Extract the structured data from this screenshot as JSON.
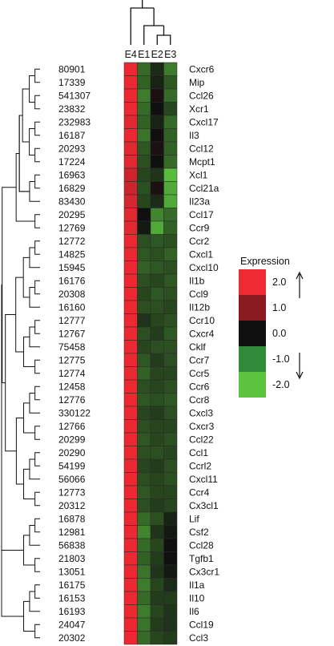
{
  "chart_data": {
    "type": "heatmap",
    "columns": [
      "E4",
      "E1",
      "E2",
      "E3"
    ],
    "rows": [
      {
        "id": "80901",
        "gene": "Cxcr6",
        "values": [
          2.0,
          -1.0,
          -0.3,
          -1.2
        ]
      },
      {
        "id": "17339",
        "gene": "Mip",
        "values": [
          2.0,
          -0.9,
          -0.2,
          -0.8
        ]
      },
      {
        "id": "541307",
        "gene": "Ccl26",
        "values": [
          2.0,
          -1.2,
          0.1,
          -1.0
        ]
      },
      {
        "id": "23832",
        "gene": "Xcr1",
        "values": [
          2.0,
          -1.0,
          0.0,
          -0.6
        ]
      },
      {
        "id": "232983",
        "gene": "Cxcl17",
        "values": [
          1.9,
          -0.9,
          -0.2,
          -1.0
        ]
      },
      {
        "id": "16187",
        "gene": "Il3",
        "values": [
          2.0,
          -1.1,
          0.0,
          -0.9
        ]
      },
      {
        "id": "20293",
        "gene": "Ccl12",
        "values": [
          1.9,
          -0.8,
          0.1,
          -0.9
        ]
      },
      {
        "id": "17224",
        "gene": "Mcpt1",
        "values": [
          1.9,
          -0.7,
          0.0,
          -1.0
        ]
      },
      {
        "id": "16963",
        "gene": "Xcl1",
        "values": [
          1.7,
          -0.6,
          -0.4,
          -1.9
        ]
      },
      {
        "id": "16829",
        "gene": "Ccl21a",
        "values": [
          1.7,
          -0.7,
          0.1,
          -1.7
        ]
      },
      {
        "id": "83430",
        "gene": "Il23a",
        "values": [
          1.8,
          -0.6,
          -0.3,
          -1.7
        ]
      },
      {
        "id": "20295",
        "gene": "Ccl17",
        "values": [
          1.9,
          0.0,
          -1.3,
          -1.0
        ]
      },
      {
        "id": "12769",
        "gene": "Ccr9",
        "values": [
          1.9,
          -0.1,
          -1.7,
          -0.9
        ]
      },
      {
        "id": "12772",
        "gene": "Ccr2",
        "values": [
          2.0,
          -0.7,
          -0.8,
          -0.7
        ]
      },
      {
        "id": "14825",
        "gene": "Cxcl1",
        "values": [
          2.0,
          -0.8,
          -0.7,
          -0.9
        ]
      },
      {
        "id": "15945",
        "gene": "Cxcl10",
        "values": [
          2.0,
          -0.9,
          -0.8,
          -0.7
        ]
      },
      {
        "id": "16176",
        "gene": "Il1b",
        "values": [
          2.0,
          -0.7,
          -0.6,
          -0.8
        ]
      },
      {
        "id": "20308",
        "gene": "Ccl9",
        "values": [
          2.0,
          -0.6,
          -0.8,
          -0.7
        ]
      },
      {
        "id": "16160",
        "gene": "Il12b",
        "values": [
          2.0,
          -0.7,
          -0.7,
          -0.6
        ]
      },
      {
        "id": "12777",
        "gene": "Ccr10",
        "values": [
          2.0,
          -0.4,
          -0.6,
          -0.7
        ]
      },
      {
        "id": "12767",
        "gene": "Cxcr4",
        "values": [
          2.0,
          -0.7,
          -0.5,
          -0.8
        ]
      },
      {
        "id": "75458",
        "gene": "Cklf",
        "values": [
          2.0,
          -0.6,
          -0.7,
          -0.7
        ]
      },
      {
        "id": "12775",
        "gene": "Ccr7",
        "values": [
          2.0,
          -0.8,
          -0.5,
          -0.7
        ]
      },
      {
        "id": "12774",
        "gene": "Ccr5",
        "values": [
          2.0,
          -0.9,
          -0.6,
          -0.6
        ]
      },
      {
        "id": "12458",
        "gene": "Ccr6",
        "values": [
          2.0,
          -0.7,
          -0.6,
          -0.7
        ]
      },
      {
        "id": "12776",
        "gene": "Ccr8",
        "values": [
          2.0,
          -0.8,
          -0.7,
          -0.8
        ]
      },
      {
        "id": "330122",
        "gene": "Cxcl3",
        "values": [
          2.0,
          -0.6,
          -0.5,
          -0.7
        ]
      },
      {
        "id": "12766",
        "gene": "Cxcr3",
        "values": [
          2.0,
          -0.7,
          -0.6,
          -0.6
        ]
      },
      {
        "id": "20299",
        "gene": "Ccl22",
        "values": [
          2.0,
          -0.8,
          -0.6,
          -0.7
        ]
      },
      {
        "id": "20290",
        "gene": "Ccl1",
        "values": [
          2.0,
          -0.7,
          -0.7,
          -0.6
        ]
      },
      {
        "id": "54199",
        "gene": "Ccrl2",
        "values": [
          2.0,
          -0.6,
          -0.5,
          -0.7
        ]
      },
      {
        "id": "56066",
        "gene": "Cxcl11",
        "values": [
          2.0,
          -0.7,
          -0.6,
          -0.7
        ]
      },
      {
        "id": "12773",
        "gene": "Ccr4",
        "values": [
          2.0,
          -0.8,
          -0.6,
          -0.6
        ]
      },
      {
        "id": "20312",
        "gene": "Cx3cl1",
        "values": [
          2.0,
          -0.7,
          -0.5,
          -0.6
        ]
      },
      {
        "id": "16878",
        "gene": "Lif",
        "values": [
          2.0,
          -1.0,
          -0.7,
          -0.2
        ]
      },
      {
        "id": "12981",
        "gene": "Csf2",
        "values": [
          2.0,
          -1.3,
          -0.4,
          -0.1
        ]
      },
      {
        "id": "56838",
        "gene": "Ccl28",
        "values": [
          2.0,
          -1.0,
          -0.6,
          0.0
        ]
      },
      {
        "id": "21803",
        "gene": "Tgfb1",
        "values": [
          2.0,
          -0.9,
          -0.5,
          0.0
        ]
      },
      {
        "id": "13051",
        "gene": "Cx3cr1",
        "values": [
          2.0,
          -1.1,
          -0.4,
          -0.1
        ]
      },
      {
        "id": "16175",
        "gene": "Il1a",
        "values": [
          2.0,
          -1.2,
          -0.6,
          -0.3
        ]
      },
      {
        "id": "16153",
        "gene": "Il10",
        "values": [
          2.0,
          -1.0,
          -0.5,
          -0.5
        ]
      },
      {
        "id": "16193",
        "gene": "Il6",
        "values": [
          2.0,
          -1.2,
          -0.6,
          -0.4
        ]
      },
      {
        "id": "24047",
        "gene": "Ccl19",
        "values": [
          2.0,
          -1.1,
          -0.5,
          -0.4
        ]
      },
      {
        "id": "20302",
        "gene": "Ccl3",
        "values": [
          2.0,
          -1.0,
          -0.6,
          -0.5
        ]
      }
    ],
    "legend": {
      "title": "Expression",
      "placement": "right",
      "ticks": [
        "2.0",
        "1.0",
        "0.0",
        "-1.0",
        "-2.0"
      ],
      "colors": [
        "#ee2a33",
        "#8a1a20",
        "#101010",
        "#2f8a3a",
        "#5cc33f"
      ]
    }
  }
}
